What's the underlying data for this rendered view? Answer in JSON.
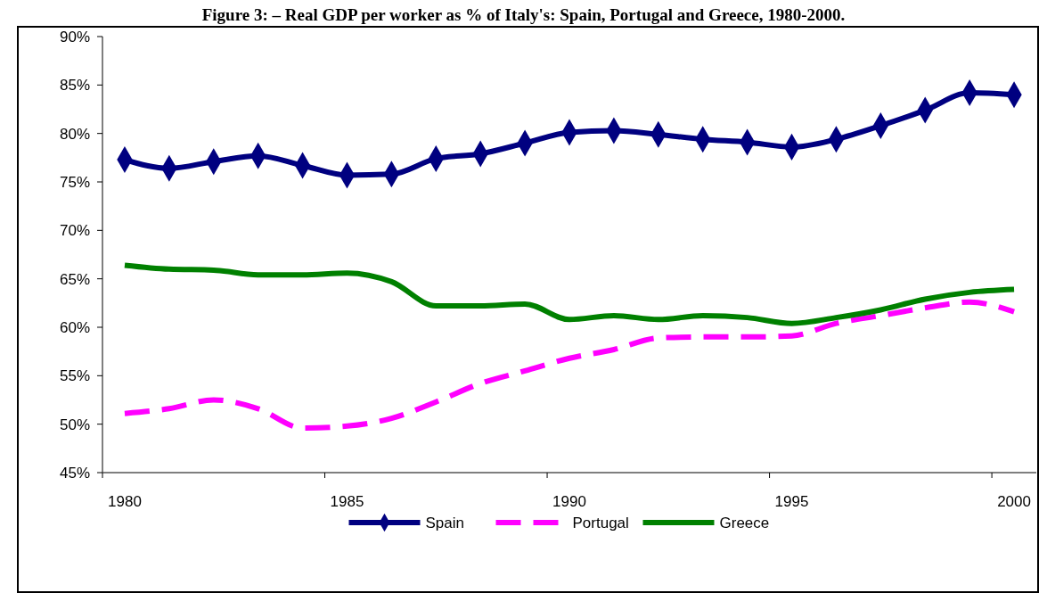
{
  "chart_data": {
    "type": "line",
    "title": "Figure 3: – Real GDP per worker as % of Italy's: Spain, Portugal and Greece, 1980-2000.",
    "categories": [
      "1980",
      null,
      null,
      null,
      null,
      "1985",
      null,
      null,
      null,
      null,
      "1990",
      null,
      null,
      null,
      null,
      "1995",
      null,
      null,
      null,
      null,
      "2000"
    ],
    "ylim": [
      45,
      90
    ],
    "yticks": [
      {
        "value": 45,
        "label": "45%"
      },
      {
        "value": 50,
        "label": "50%"
      },
      {
        "value": 55,
        "label": "55%"
      },
      {
        "value": 60,
        "label": "60%"
      },
      {
        "value": 65,
        "label": "65%"
      },
      {
        "value": 70,
        "label": "70%"
      },
      {
        "value": 75,
        "label": "75%"
      },
      {
        "value": 80,
        "label": "80%"
      },
      {
        "value": 85,
        "label": "85%"
      },
      {
        "value": 90,
        "label": "90%"
      }
    ],
    "grid": false,
    "legend": "bottom",
    "series": [
      {
        "name": "Spain",
        "color": "#000080",
        "marker": "diamond",
        "line_style": "solid",
        "values": [
          77.3,
          76.4,
          77.1,
          77.7,
          76.7,
          75.7,
          75.8,
          77.4,
          77.9,
          79.0,
          80.1,
          80.3,
          79.9,
          79.4,
          79.1,
          78.6,
          79.4,
          80.8,
          82.4,
          84.2,
          84.0
        ]
      },
      {
        "name": "Portugal",
        "color": "#ff00ff",
        "marker": "none",
        "line_style": "dashed",
        "values": [
          51.1,
          51.6,
          52.5,
          51.6,
          49.6,
          49.8,
          50.6,
          52.3,
          54.2,
          55.5,
          56.8,
          57.7,
          58.9,
          59.0,
          59.0,
          59.1,
          60.4,
          61.2,
          62.0,
          62.6,
          61.6
        ]
      },
      {
        "name": "Greece",
        "color": "#008000",
        "marker": "none",
        "line_style": "solid",
        "values": [
          66.4,
          66.0,
          65.9,
          65.4,
          65.4,
          65.6,
          64.7,
          62.2,
          62.2,
          62.4,
          60.8,
          61.2,
          60.8,
          61.2,
          61.0,
          60.4,
          61.0,
          61.8,
          62.9,
          63.6,
          63.9
        ]
      }
    ]
  }
}
